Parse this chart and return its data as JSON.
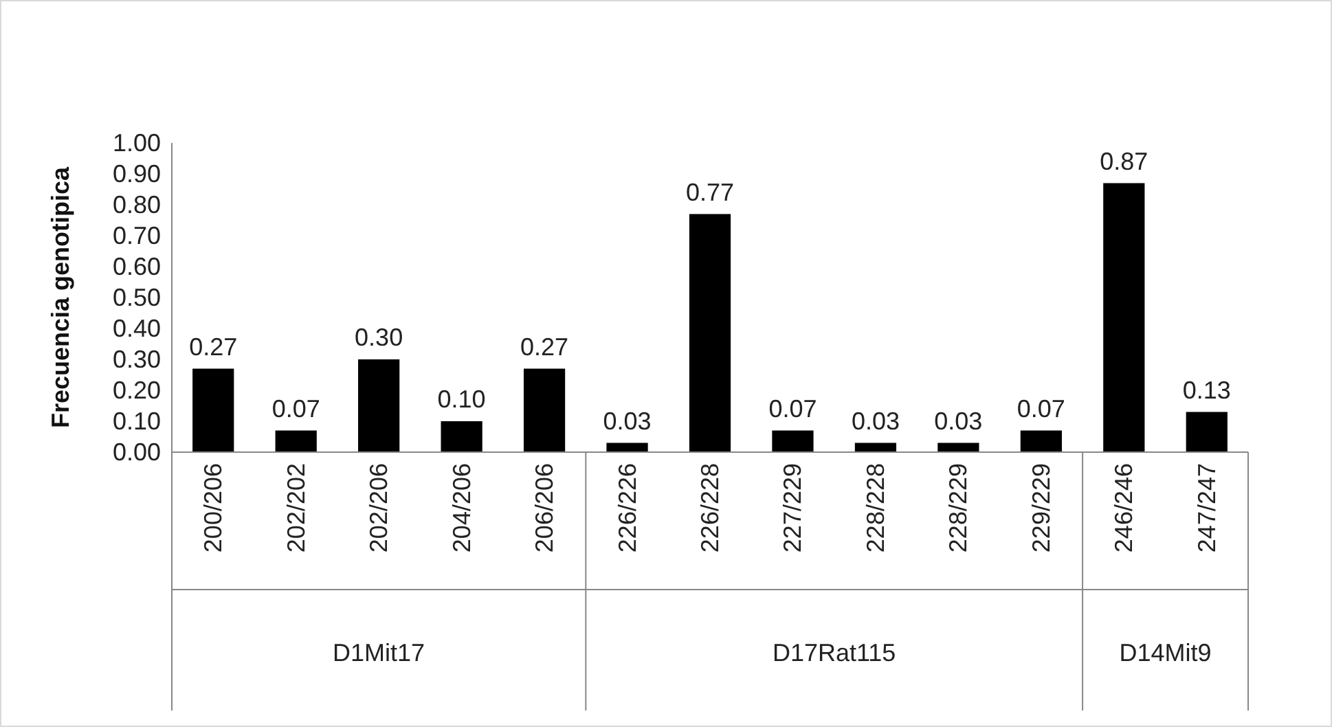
{
  "chart_data": {
    "type": "bar",
    "ylabel": "Frecuencia genotipica",
    "categories": [
      "200/206",
      "202/202",
      "202/206",
      "204/206",
      "206/206",
      "226/226",
      "226/228",
      "227/229",
      "228/228",
      "228/229",
      "229/229",
      "246/246",
      "247/247"
    ],
    "values": [
      0.27,
      0.07,
      0.3,
      0.1,
      0.27,
      0.03,
      0.77,
      0.07,
      0.03,
      0.03,
      0.07,
      0.87,
      0.13
    ],
    "value_labels": [
      "0.27",
      "0.07",
      "0.30",
      "0.10",
      "0.27",
      "0.03",
      "0.77",
      "0.07",
      "0.03",
      "0.03",
      "0.07",
      "0.87",
      "0.13"
    ],
    "color": "#000000",
    "ylim": [
      0,
      1
    ],
    "yticks": [
      {
        "value": 0,
        "label": "0.00"
      },
      {
        "value": 0.1,
        "label": "0.10"
      },
      {
        "value": 0.2,
        "label": "0.20"
      },
      {
        "value": 0.3,
        "label": "0.30"
      },
      {
        "value": 0.4,
        "label": "0.40"
      },
      {
        "value": 0.5,
        "label": "0.50"
      },
      {
        "value": 0.6,
        "label": "0.60"
      },
      {
        "value": 0.7,
        "label": "0.70"
      },
      {
        "value": 0.8,
        "label": "0.80"
      },
      {
        "value": 0.9,
        "label": "0.90"
      },
      {
        "value": 1,
        "label": "1.00"
      }
    ],
    "annotations": [
      "D1Mit17",
      "D17Rat115",
      "D14Mit9"
    ],
    "grid": false
  }
}
